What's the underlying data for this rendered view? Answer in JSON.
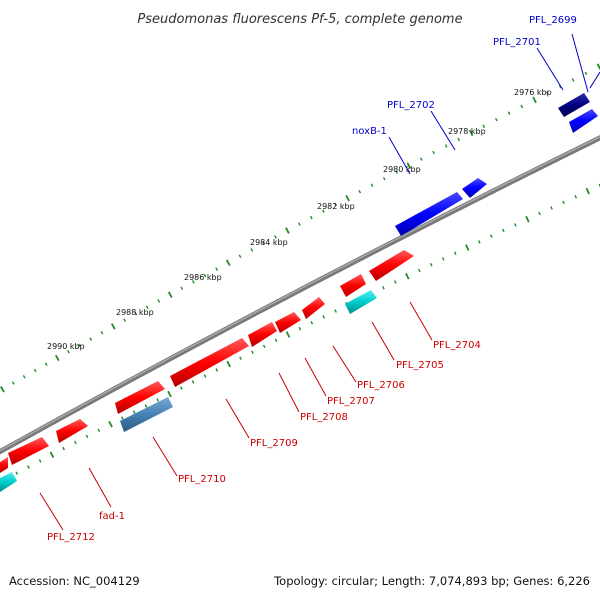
{
  "title": "Pseudomonas fluorescens Pf-5, complete genome",
  "accession_text": "Accession: NC_004129",
  "topology_text": "Topology: circular; Length: 7,074,893 bp; Genes: 6,226",
  "colors": {
    "background": "#ffffff",
    "backbone": "#888888",
    "tick": "#228b22",
    "label_forward": "#0000cc",
    "label_reverse": "#cc0000",
    "feature_red": "#ff0000",
    "feature_blue": "#0000ff",
    "feature_navy": "#000080",
    "feature_cyan": "#00cccc",
    "feature_steel": "#4682b4"
  },
  "axis_ticks": [
    {
      "label": "2976 kbp"
    },
    {
      "label": "2978 kbp"
    },
    {
      "label": "2980 kbp"
    },
    {
      "label": "2982 kbp"
    },
    {
      "label": "2984 kbp"
    },
    {
      "label": "2986 kbp"
    },
    {
      "label": "2988 kbp"
    },
    {
      "label": "2990 kbp"
    }
  ],
  "genes": [
    {
      "name": "PFL_2699",
      "strand": "forward",
      "color": "navy"
    },
    {
      "name": "PFL_2701",
      "strand": "forward",
      "color": "navy"
    },
    {
      "name": "PFL_2702",
      "strand": "forward",
      "color": "blue"
    },
    {
      "name": "noxB-1",
      "strand": "forward",
      "color": "blue"
    },
    {
      "name": "PFL_2704",
      "strand": "reverse",
      "color": "red"
    },
    {
      "name": "PFL_2705",
      "strand": "reverse",
      "color": "cyan"
    },
    {
      "name": "PFL_2706",
      "strand": "reverse",
      "color": "red"
    },
    {
      "name": "PFL_2707",
      "strand": "reverse",
      "color": "red"
    },
    {
      "name": "PFL_2708",
      "strand": "reverse",
      "color": "red"
    },
    {
      "name": "PFL_2709",
      "strand": "reverse",
      "color": "red"
    },
    {
      "name": "PFL_2710",
      "strand": "reverse",
      "color": "steel"
    },
    {
      "name": "fad-1",
      "strand": "reverse",
      "color": "red"
    },
    {
      "name": "PFL_2712",
      "strand": "reverse",
      "color": "red"
    }
  ]
}
